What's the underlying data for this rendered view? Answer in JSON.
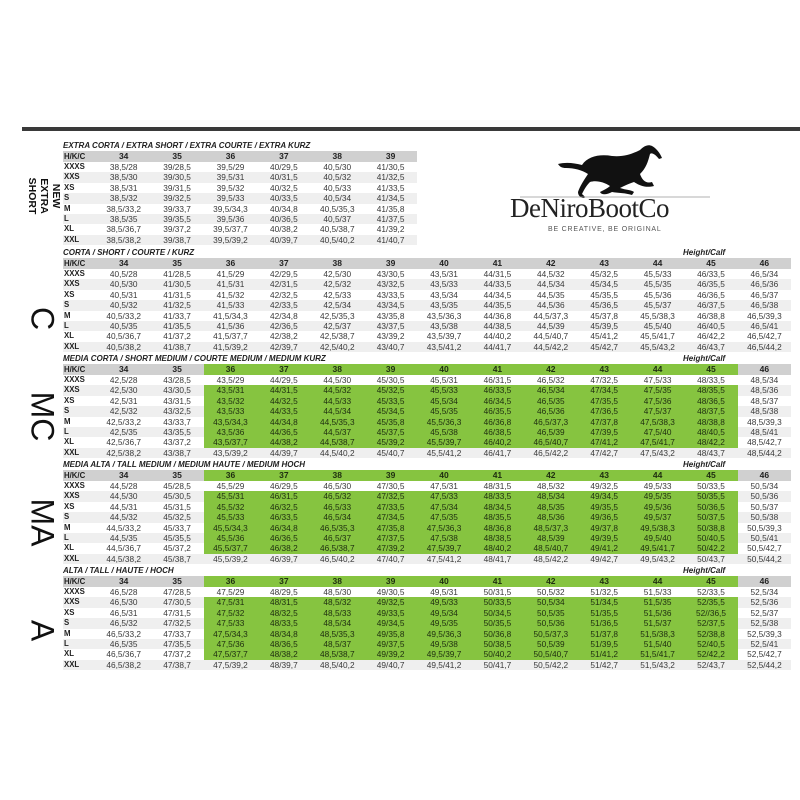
{
  "logo": {
    "brand": "DeNiroBootCo",
    "tagline": "BE CREATIVE, BE ORIGINAL",
    "icon": "galloping-horse-icon"
  },
  "colors": {
    "highlight": "#86c440",
    "header": "#d0d0d0",
    "stripe": "#efefef",
    "rule": "#3a3a3a"
  },
  "tables": [
    {
      "title": "EXTRA CORTA / EXTRA SHORT / EXTRA COURTE / EXTRA KURZ",
      "side_label": "NEW EXTRA SHORT",
      "height_calf_label": "",
      "header": [
        "H/K/C",
        "34",
        "35",
        "36",
        "37",
        "38",
        "39"
      ],
      "highlight": null,
      "rows": [
        {
          "size": "XXXS",
          "cells": [
            "38,5/28",
            "39/28,5",
            "39,5/29",
            "40/29,5",
            "40,5/30",
            "41/30,5"
          ]
        },
        {
          "size": "XXS",
          "cells": [
            "38,5/30",
            "39/30,5",
            "39,5/31",
            "40/31,5",
            "40,5/32",
            "41/32,5"
          ]
        },
        {
          "size": "XS",
          "cells": [
            "38,5/31",
            "39/31,5",
            "39,5/32",
            "40/32,5",
            "40,5/33",
            "41/33,5"
          ]
        },
        {
          "size": "S",
          "cells": [
            "38,5/32",
            "39/32,5",
            "39,5/33",
            "40/33,5",
            "40,5/34",
            "41/34,5"
          ]
        },
        {
          "size": "M",
          "cells": [
            "38,5/33,2",
            "39/33,7",
            "39,5/34,3",
            "40/34,8",
            "40,5/35,3",
            "41/35,8"
          ]
        },
        {
          "size": "L",
          "cells": [
            "38,5/35",
            "39/35,5",
            "39,5/36",
            "40/36,5",
            "40,5/37",
            "41/37,5"
          ]
        },
        {
          "size": "XL",
          "cells": [
            "38,5/36,7",
            "39/37,2",
            "39,5/37,7",
            "40/38,2",
            "40,5/38,7",
            "41/39,2"
          ]
        },
        {
          "size": "XXL",
          "cells": [
            "38,5/38,2",
            "39/38,7",
            "39,5/39,2",
            "40/39,7",
            "40,5/40,2",
            "41/40,7"
          ]
        }
      ]
    },
    {
      "title": "CORTA / SHORT / COURTE / KURZ",
      "side_label": "C",
      "height_calf_label": "Height/Calf",
      "header": [
        "H/K/C",
        "34",
        "35",
        "36",
        "37",
        "38",
        "39",
        "40",
        "41",
        "42",
        "43",
        "44",
        "45",
        "46"
      ],
      "highlight": null,
      "rows": [
        {
          "size": "XXXS",
          "cells": [
            "40,5/28",
            "41/28,5",
            "41,5/29",
            "42/29,5",
            "42,5/30",
            "43/30,5",
            "43,5/31",
            "44/31,5",
            "44,5/32",
            "45/32,5",
            "45,5/33",
            "46/33,5",
            "46,5/34"
          ]
        },
        {
          "size": "XXS",
          "cells": [
            "40,5/30",
            "41/30,5",
            "41,5/31",
            "42/31,5",
            "42,5/32",
            "43/32,5",
            "43,5/33",
            "44/33,5",
            "44,5/34",
            "45/34,5",
            "45,5/35",
            "46/35,5",
            "46,5/36"
          ]
        },
        {
          "size": "XS",
          "cells": [
            "40,5/31",
            "41/31,5",
            "41,5/32",
            "42/32,5",
            "42,5/33",
            "43/33,5",
            "43,5/34",
            "44/34,5",
            "44,5/35",
            "45/35,5",
            "45,5/36",
            "46/36,5",
            "46,5/37"
          ]
        },
        {
          "size": "S",
          "cells": [
            "40,5/32",
            "41/32,5",
            "41,5/33",
            "42/33,5",
            "42,5/34",
            "43/34,5",
            "43,5/35",
            "44/35,5",
            "44,5/36",
            "45/36,5",
            "45,5/37",
            "46/37,5",
            "46,5/38"
          ]
        },
        {
          "size": "M",
          "cells": [
            "40,5/33,2",
            "41/33,7",
            "41,5/34,3",
            "42/34,8",
            "42,5/35,3",
            "43/35,8",
            "43,5/36,3",
            "44/36,8",
            "44,5/37,3",
            "45/37,8",
            "45,5/38,3",
            "46/38,8",
            "46,5/39,3"
          ]
        },
        {
          "size": "L",
          "cells": [
            "40,5/35",
            "41/35,5",
            "41,5/36",
            "42/36,5",
            "42,5/37",
            "43/37,5",
            "43,5/38",
            "44/38,5",
            "44,5/39",
            "45/39,5",
            "45,5/40",
            "46/40,5",
            "46,5/41"
          ]
        },
        {
          "size": "XL",
          "cells": [
            "40,5/36,7",
            "41/37,2",
            "41,5/37,7",
            "42/38,2",
            "42,5/38,7",
            "43/39,2",
            "43,5/39,7",
            "44/40,2",
            "44,5/40,7",
            "45/41,2",
            "45,5/41,7",
            "46/42,2",
            "46,5/42,7"
          ]
        },
        {
          "size": "XXL",
          "cells": [
            "40,5/38,2",
            "41/38,7",
            "41,5/39,2",
            "42/39,7",
            "42,5/40,2",
            "43/40,7",
            "43,5/41,2",
            "44/41,7",
            "44,5/42,2",
            "45/42,7",
            "45,5/43,2",
            "46/43,7",
            "46,5/44,2"
          ]
        }
      ]
    },
    {
      "title": "MEDIA CORTA / SHORT MEDIUM / COURTE MEDIUM / MEDIUM KURZ",
      "side_label": "MC",
      "height_calf_label": "Height/Calf",
      "header": [
        "H/K/C",
        "34",
        "35",
        "36",
        "37",
        "38",
        "39",
        "40",
        "41",
        "42",
        "43",
        "44",
        "45",
        "46"
      ],
      "highlight": {
        "columns": [
          "36",
          "37",
          "38",
          "39",
          "40",
          "41",
          "42",
          "43",
          "44",
          "45"
        ],
        "sizes": [
          "XXS",
          "XS",
          "S",
          "M",
          "L",
          "XL"
        ]
      },
      "rows": [
        {
          "size": "XXXS",
          "cells": [
            "42,5/28",
            "43/28,5",
            "43,5/29",
            "44/29,5",
            "44,5/30",
            "45/30,5",
            "45,5/31",
            "46/31,5",
            "46,5/32",
            "47/32,5",
            "47,5/33",
            "48/33,5",
            "48,5/34"
          ]
        },
        {
          "size": "XXS",
          "cells": [
            "42,5/30",
            "43/30,5",
            "43,5/31",
            "44/31,5",
            "44,5/32",
            "45/32,5",
            "45,5/33",
            "46/33,5",
            "46,5/34",
            "47/34,5",
            "47,5/35",
            "48/35,5",
            "48,5/36"
          ]
        },
        {
          "size": "XS",
          "cells": [
            "42,5/31",
            "43/31,5",
            "43,5/32",
            "44/32,5",
            "44,5/33",
            "45/33,5",
            "45,5/34",
            "46/34,5",
            "46,5/35",
            "47/35,5",
            "47,5/36",
            "48/36,5",
            "48,5/37"
          ]
        },
        {
          "size": "S",
          "cells": [
            "42,5/32",
            "43/32,5",
            "43,5/33",
            "44/33,5",
            "44,5/34",
            "45/34,5",
            "45,5/35",
            "46/35,5",
            "46,5/36",
            "47/36,5",
            "47,5/37",
            "48/37,5",
            "48,5/38"
          ]
        },
        {
          "size": "M",
          "cells": [
            "42,5/33,2",
            "43/33,7",
            "43,5/34,3",
            "44/34,8",
            "44,5/35,3",
            "45/35,8",
            "45,5/36,3",
            "46/36,8",
            "46,5/37,3",
            "47/37,8",
            "47,5/38,3",
            "48/38,8",
            "48,5/39,3"
          ]
        },
        {
          "size": "L",
          "cells": [
            "42,5/35",
            "43/35,5",
            "43,5/36",
            "44/36,5",
            "44,5/37",
            "45/37,5",
            "45,5/38",
            "46/38,5",
            "46,5/39",
            "47/39,5",
            "47,5/40",
            "48/40,5",
            "48,5/41"
          ]
        },
        {
          "size": "XL",
          "cells": [
            "42,5/36,7",
            "43/37,2",
            "43,5/37,7",
            "44/38,2",
            "44,5/38,7",
            "45/39,2",
            "45,5/39,7",
            "46/40,2",
            "46,5/40,7",
            "47/41,2",
            "47,5/41,7",
            "48/42,2",
            "48,5/42,7"
          ]
        },
        {
          "size": "XXL",
          "cells": [
            "42,5/38,2",
            "43/38,7",
            "43,5/39,2",
            "44/39,7",
            "44,5/40,2",
            "45/40,7",
            "45,5/41,2",
            "46/41,7",
            "46,5/42,2",
            "47/42,7",
            "47,5/43,2",
            "48/43,7",
            "48,5/44,2"
          ]
        }
      ]
    },
    {
      "title": "MEDIA ALTA / TALL MEDIUM / MEDIUM HAUTE / MEDIUM HOCH",
      "side_label": "MA",
      "height_calf_label": "Height/Calf",
      "header": [
        "H/K/C",
        "34",
        "35",
        "36",
        "37",
        "38",
        "39",
        "40",
        "41",
        "42",
        "43",
        "44",
        "45",
        "46"
      ],
      "highlight": {
        "columns": [
          "36",
          "37",
          "38",
          "39",
          "40",
          "41",
          "42",
          "43",
          "44",
          "45"
        ],
        "sizes": [
          "XXS",
          "XS",
          "S",
          "M",
          "L",
          "XL"
        ]
      },
      "rows": [
        {
          "size": "XXXS",
          "cells": [
            "44,5/28",
            "45/28,5",
            "45,5/29",
            "46/29,5",
            "46,5/30",
            "47/30,5",
            "47,5/31",
            "48/31,5",
            "48,5/32",
            "49/32,5",
            "49,5/33",
            "50/33,5",
            "50,5/34"
          ]
        },
        {
          "size": "XXS",
          "cells": [
            "44,5/30",
            "45/30,5",
            "45,5/31",
            "46/31,5",
            "46,5/32",
            "47/32,5",
            "47,5/33",
            "48/33,5",
            "48,5/34",
            "49/34,5",
            "49,5/35",
            "50/35,5",
            "50,5/36"
          ]
        },
        {
          "size": "XS",
          "cells": [
            "44,5/31",
            "45/31,5",
            "45,5/32",
            "46/32,5",
            "46,5/33",
            "47/33,5",
            "47,5/34",
            "48/34,5",
            "48,5/35",
            "49/35,5",
            "49,5/36",
            "50/36,5",
            "50,5/37"
          ]
        },
        {
          "size": "S",
          "cells": [
            "44,5/32",
            "45/32,5",
            "45,5/33",
            "46/33,5",
            "46,5/34",
            "47/34,5",
            "47,5/35",
            "48/35,5",
            "48,5/36",
            "49/36,5",
            "49,5/37",
            "50/37,5",
            "50,5/38"
          ]
        },
        {
          "size": "M",
          "cells": [
            "44,5/33,2",
            "45/33,7",
            "45,5/34,3",
            "46/34,8",
            "46,5/35,3",
            "47/35,8",
            "47,5/36,3",
            "48/36,8",
            "48,5/37,3",
            "49/37,8",
            "49,5/38,3",
            "50/38,8",
            "50,5/39,3"
          ]
        },
        {
          "size": "L",
          "cells": [
            "44,5/35",
            "45/35,5",
            "45,5/36",
            "46/36,5",
            "46,5/37",
            "47/37,5",
            "47,5/38",
            "48/38,5",
            "48,5/39",
            "49/39,5",
            "49,5/40",
            "50/40,5",
            "50,5/41"
          ]
        },
        {
          "size": "XL",
          "cells": [
            "44,5/36,7",
            "45/37,2",
            "45,5/37,7",
            "46/38,2",
            "46,5/38,7",
            "47/39,2",
            "47,5/39,7",
            "48/40,2",
            "48,5/40,7",
            "49/41,2",
            "49,5/41,7",
            "50/42,2",
            "50,5/42,7"
          ]
        },
        {
          "size": "XXL",
          "cells": [
            "44,5/38,2",
            "45/38,7",
            "45,5/39,2",
            "46/39,7",
            "46,5/40,2",
            "47/40,7",
            "47,5/41,2",
            "48/41,7",
            "48,5/42,2",
            "49/42,7",
            "49,5/43,2",
            "50/43,7",
            "50,5/44,2"
          ]
        }
      ]
    },
    {
      "title": "ALTA / TALL / HAUTE / HOCH",
      "side_label": "A",
      "height_calf_label": "Height/Calf",
      "header": [
        "H/K/C",
        "34",
        "35",
        "36",
        "37",
        "38",
        "39",
        "40",
        "41",
        "42",
        "43",
        "44",
        "45",
        "46"
      ],
      "highlight": {
        "columns": [
          "36",
          "37",
          "38",
          "39",
          "40",
          "41",
          "42",
          "43",
          "44",
          "45"
        ],
        "sizes": [
          "XXS",
          "XS",
          "S",
          "M",
          "L",
          "XL"
        ]
      },
      "rows": [
        {
          "size": "XXXS",
          "cells": [
            "46,5/28",
            "47/28,5",
            "47,5/29",
            "48/29,5",
            "48,5/30",
            "49/30,5",
            "49,5/31",
            "50/31,5",
            "50,5/32",
            "51/32,5",
            "51,5/33",
            "52/33,5",
            "52,5/34"
          ]
        },
        {
          "size": "XXS",
          "cells": [
            "46,5/30",
            "47/30,5",
            "47,5/31",
            "48/31,5",
            "48,5/32",
            "49/32,5",
            "49,5/33",
            "50/33,5",
            "50,5/34",
            "51/34,5",
            "51,5/35",
            "52/35,5",
            "52,5/36"
          ]
        },
        {
          "size": "XS",
          "cells": [
            "46,5/31",
            "47/31,5",
            "47,5/32",
            "48/32,5",
            "48,5/33",
            "49/33,5",
            "49,5/34",
            "50/34,5",
            "50,5/35",
            "51/35,5",
            "51,5/36",
            "52//36,5",
            "52,5/37"
          ]
        },
        {
          "size": "S",
          "cells": [
            "46,5/32",
            "47/32,5",
            "47,5/33",
            "48/33,5",
            "48,5/34",
            "49/34,5",
            "49,5/35",
            "50/35,5",
            "50,5/36",
            "51/36,5",
            "51,5/37",
            "52/37,5",
            "52,5/38"
          ]
        },
        {
          "size": "M",
          "cells": [
            "46,5/33,2",
            "47/33,7",
            "47,5/34,3",
            "48/34,8",
            "48,5/35,3",
            "49/35,8",
            "49,5/36,3",
            "50/36,8",
            "50,5/37,3",
            "51/37,8",
            "51,5/38,3",
            "52/38,8",
            "52,5/39,3"
          ]
        },
        {
          "size": "L",
          "cells": [
            "46,5/35",
            "47/35,5",
            "47,5/36",
            "48/36,5",
            "48,5/37",
            "49/37,5",
            "49,5/38",
            "50/38,5",
            "50,5/39",
            "51/39,5",
            "51,5/40",
            "52/40,5",
            "52,5/41"
          ]
        },
        {
          "size": "XL",
          "cells": [
            "46,5/36,7",
            "47/37,2",
            "47,5/37,7",
            "48/38,2",
            "48,5/38,7",
            "49/39,2",
            "49,5/39,7",
            "50/40,2",
            "50,5/40,7",
            "51/41,2",
            "51,5/41,7",
            "52/42,2",
            "52,5/42,7"
          ]
        },
        {
          "size": "XXL",
          "cells": [
            "46,5/38,2",
            "47/38,7",
            "47,5/39,2",
            "48/39,7",
            "48,5/40,2",
            "49/40,7",
            "49,5/41,2",
            "50/41,7",
            "50,5/42,2",
            "51/42,7",
            "51,5/43,2",
            "52/43,7",
            "52,5/44,2"
          ]
        }
      ]
    }
  ]
}
